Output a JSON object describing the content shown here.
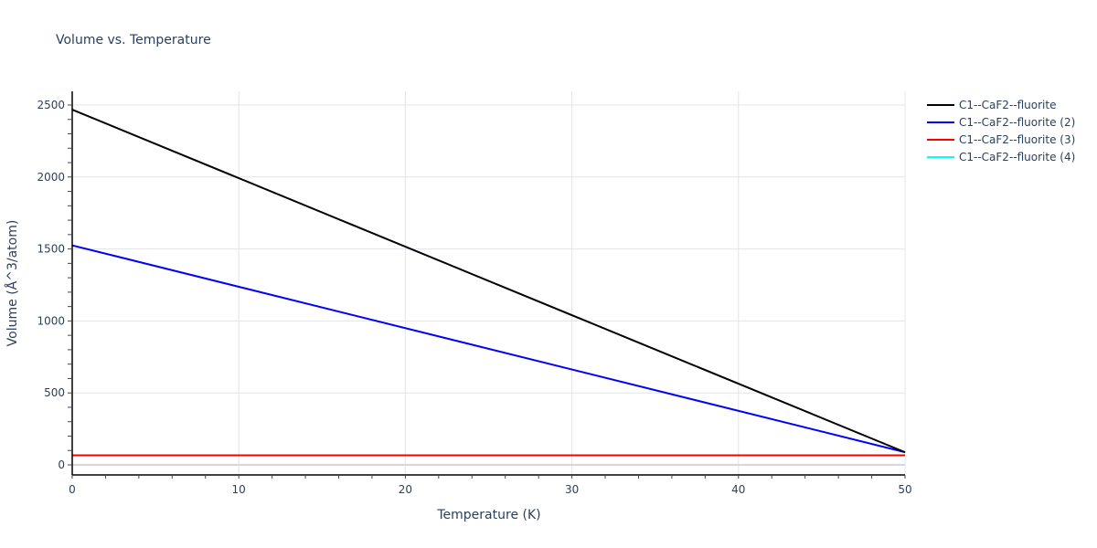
{
  "title": "Volume vs. Temperature",
  "axes": {
    "x": {
      "label": "Temperature (K)",
      "ticks": [
        "0",
        "10",
        "20",
        "30",
        "40",
        "50"
      ]
    },
    "y": {
      "label": "Volume (Å^3/atom)",
      "ticks": [
        "0",
        "500",
        "1000",
        "1500",
        "2000",
        "2500"
      ]
    }
  },
  "legend": [
    {
      "label": "C1--CaF2--fluorite",
      "color": "#000000"
    },
    {
      "label": "C1--CaF2--fluorite (2)",
      "color": "#0000ff"
    },
    {
      "label": "C1--CaF2--fluorite (3)",
      "color": "#ff0000"
    },
    {
      "label": "C1--CaF2--fluorite (4)",
      "color": "#00ffff"
    }
  ],
  "chart_data": {
    "type": "line",
    "title": "Volume vs. Temperature",
    "xlabel": "Temperature (K)",
    "ylabel": "Volume (Å^3/atom)",
    "xlim": [
      0,
      50
    ],
    "ylim": [
      -70,
      2600
    ],
    "x_ticks": [
      0,
      10,
      20,
      30,
      40,
      50
    ],
    "y_ticks": [
      0,
      500,
      1000,
      1500,
      2000,
      2500
    ],
    "grid": true,
    "legend_position": "right",
    "series": [
      {
        "name": "C1--CaF2--fluorite",
        "color": "#000000",
        "x": [
          0,
          50
        ],
        "values": [
          2468,
          88
        ]
      },
      {
        "name": "C1--CaF2--fluorite (2)",
        "color": "#0000ff",
        "x": [
          0,
          50
        ],
        "values": [
          1525,
          88
        ]
      },
      {
        "name": "C1--CaF2--fluorite (3)",
        "color": "#ff0000",
        "x": [
          0,
          50
        ],
        "values": [
          67,
          67
        ]
      },
      {
        "name": "C1--CaF2--fluorite (4)",
        "color": "#00ffff",
        "x": [
          0,
          50
        ],
        "values": [
          67,
          67
        ]
      }
    ]
  }
}
